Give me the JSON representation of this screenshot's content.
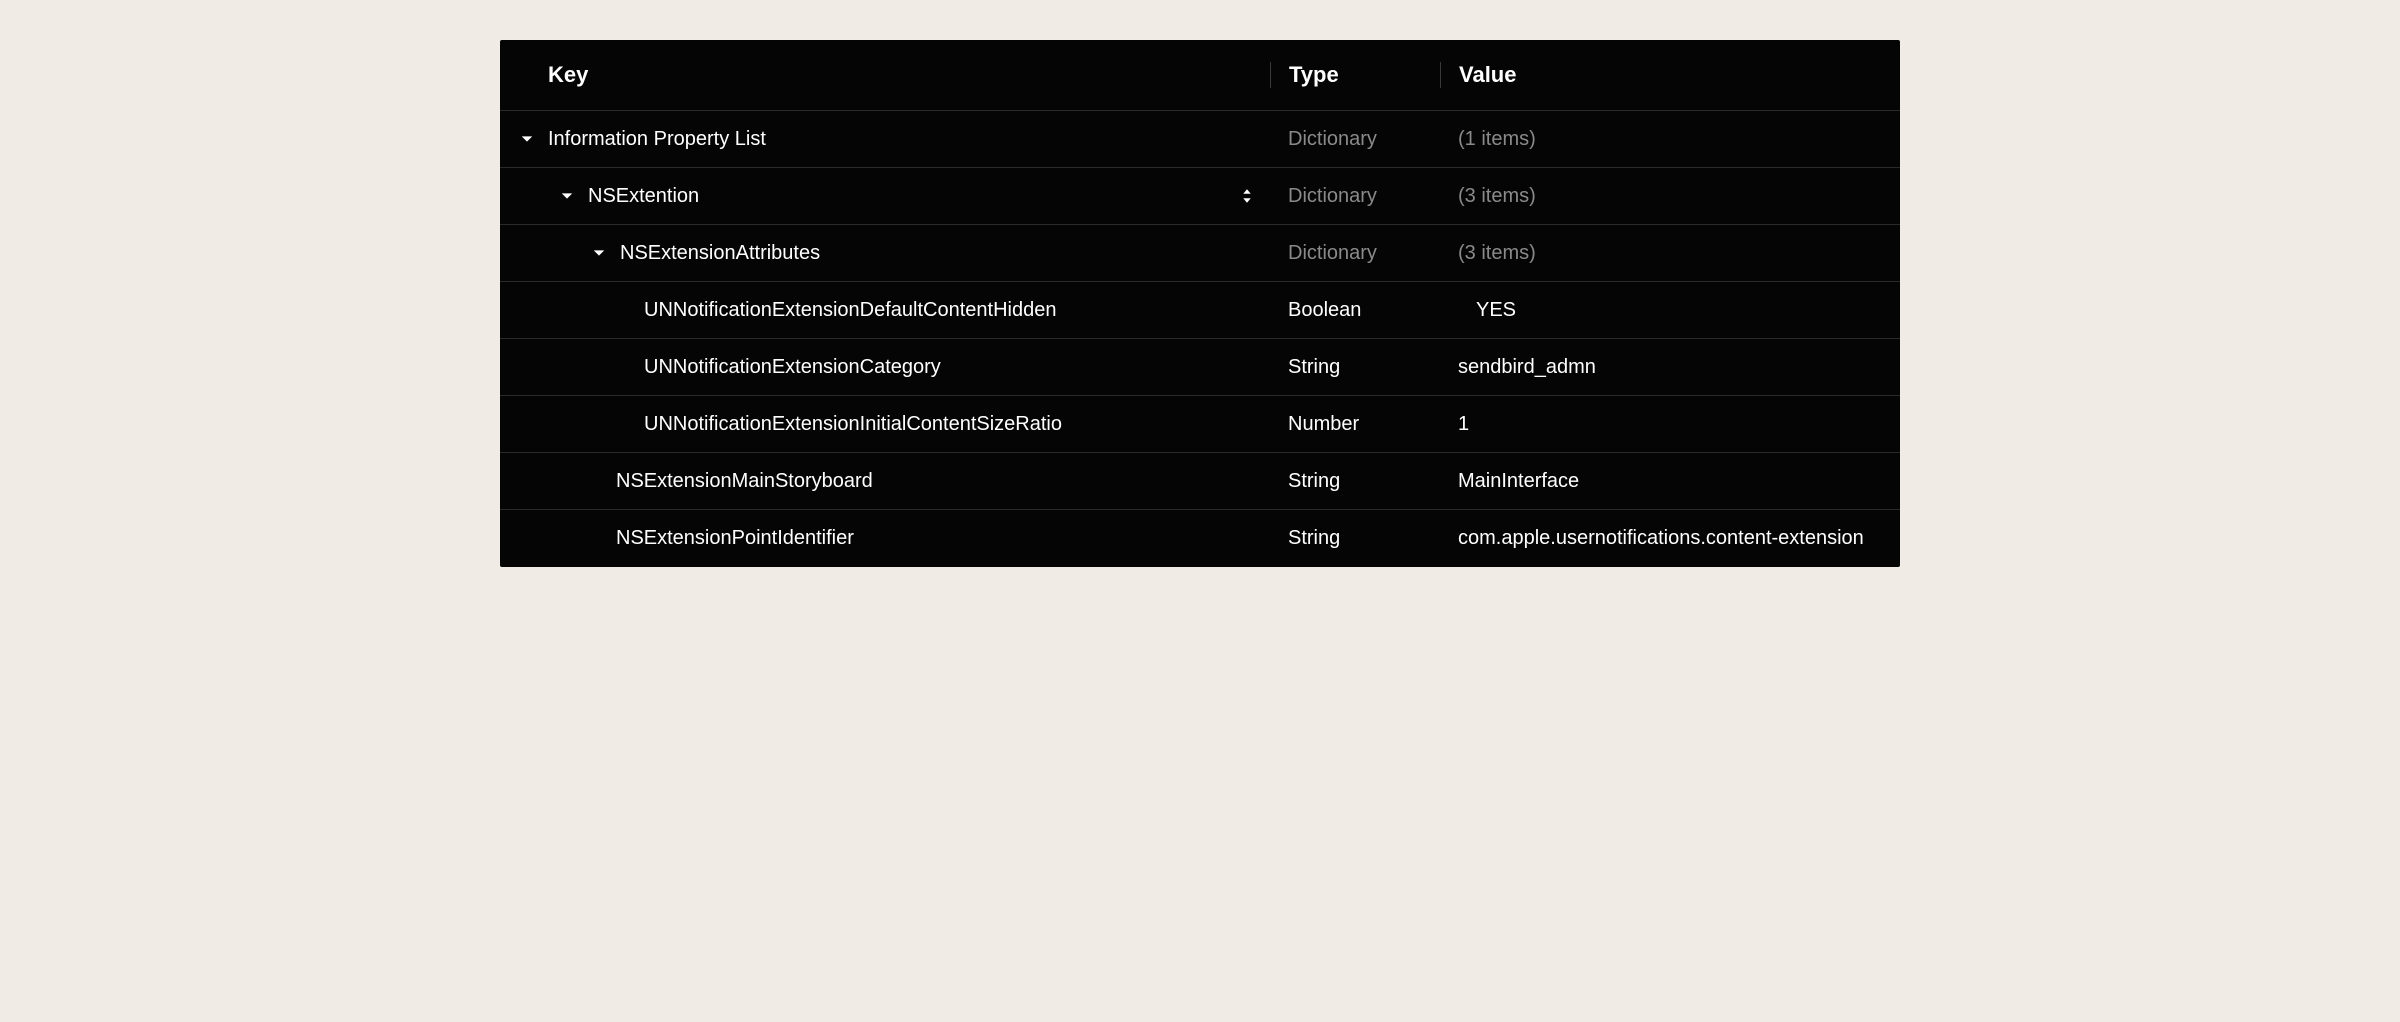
{
  "colors": {
    "page_bg": "#f0ece5",
    "table_bg": "#050505",
    "border": "#2a2a2a",
    "divider": "#3a3a3a",
    "text_white": "#ffffff",
    "text_dim": "#8a8a8a"
  },
  "headers": {
    "key": "Key",
    "type": "Type",
    "value": "Value"
  },
  "rows": [
    {
      "indent": 0,
      "has_chevron": true,
      "has_stepper": false,
      "key": "Information Property List",
      "type": "Dictionary",
      "type_dim": true,
      "value": "(1 items)",
      "value_dim": true,
      "value_indent": false
    },
    {
      "indent": 1,
      "has_chevron": true,
      "has_stepper": true,
      "key": "NSExtention",
      "type": "Dictionary",
      "type_dim": true,
      "value": "(3 items)",
      "value_dim": true,
      "value_indent": false
    },
    {
      "indent": 2,
      "has_chevron": true,
      "has_stepper": false,
      "key": "NSExtensionAttributes",
      "type": "Dictionary",
      "type_dim": true,
      "value": "(3 items)",
      "value_dim": true,
      "value_indent": false
    },
    {
      "indent": 3,
      "has_chevron": false,
      "has_stepper": false,
      "key": "UNNotificationExtensionDefaultContentHidden",
      "type": "Boolean",
      "type_dim": false,
      "value": "YES",
      "value_dim": false,
      "value_indent": true
    },
    {
      "indent": 3,
      "has_chevron": false,
      "has_stepper": false,
      "key": "UNNotificationExtensionCategory",
      "type": "String",
      "type_dim": false,
      "value": "sendbird_admn",
      "value_dim": false,
      "value_indent": false
    },
    {
      "indent": 3,
      "has_chevron": false,
      "has_stepper": false,
      "key": "UNNotificationExtensionInitialContentSizeRatio",
      "type": "Number",
      "type_dim": false,
      "value": "1",
      "value_dim": false,
      "value_indent": false
    },
    {
      "indent": 2,
      "has_chevron": false,
      "has_stepper": false,
      "key": "NSExtensionMainStoryboard",
      "type": "String",
      "type_dim": false,
      "value": "MainInterface",
      "value_dim": false,
      "value_indent": false
    },
    {
      "indent": 2,
      "has_chevron": false,
      "has_stepper": false,
      "key": "NSExtensionPointIdentifier",
      "type": "String",
      "type_dim": false,
      "value": "com.apple.usernotifications.content-extension",
      "value_dim": false,
      "value_indent": false
    }
  ]
}
